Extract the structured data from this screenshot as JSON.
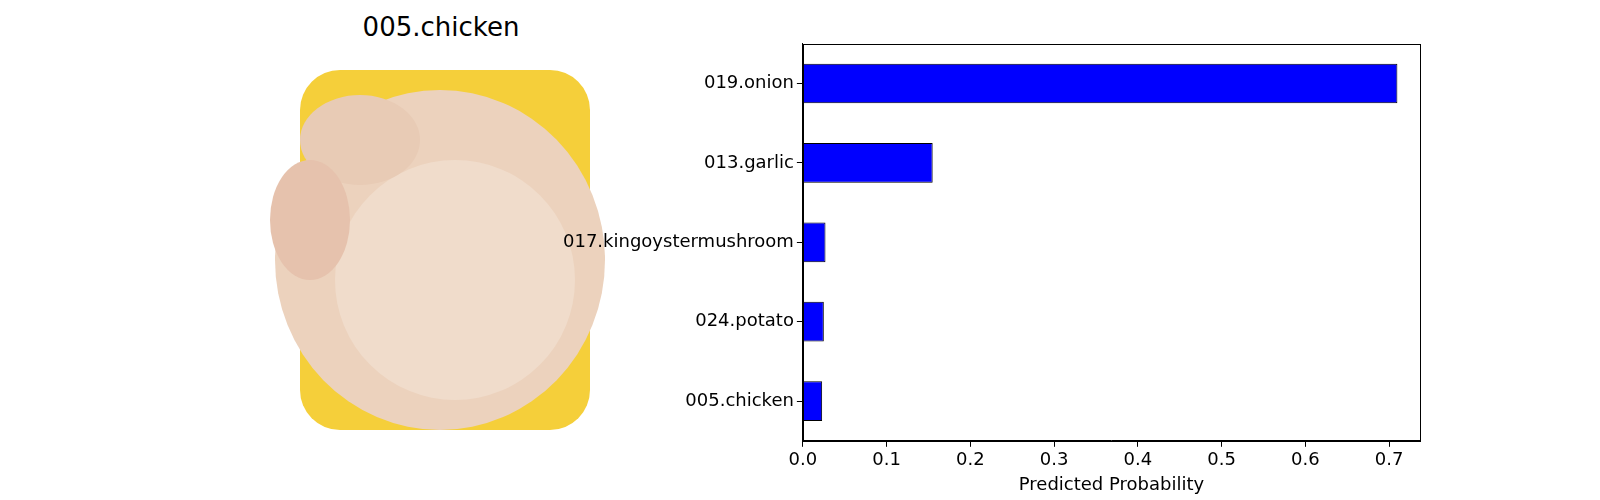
{
  "image": {
    "title": "005.chicken"
  },
  "chart_data": {
    "type": "bar",
    "orientation": "horizontal",
    "categories": [
      "019.onion",
      "013.garlic",
      "017.kingoystermushroom",
      "024.potato",
      "005.chicken"
    ],
    "values": [
      0.71,
      0.155,
      0.027,
      0.025,
      0.023
    ],
    "color": "#0000ff",
    "x_label": "Predicted Probability",
    "xlim": [
      0,
      0.737
    ],
    "xticks": [
      {
        "value": 0,
        "label": "0.0"
      },
      {
        "value": 0.1,
        "label": "0.1"
      },
      {
        "value": 0.2,
        "label": "0.2"
      },
      {
        "value": 0.3,
        "label": "0.3"
      },
      {
        "value": 0.4,
        "label": "0.4"
      },
      {
        "value": 0.5,
        "label": "0.5"
      },
      {
        "value": 0.6,
        "label": "0.6"
      },
      {
        "value": 0.7,
        "label": "0.7"
      }
    ],
    "grid": false
  }
}
